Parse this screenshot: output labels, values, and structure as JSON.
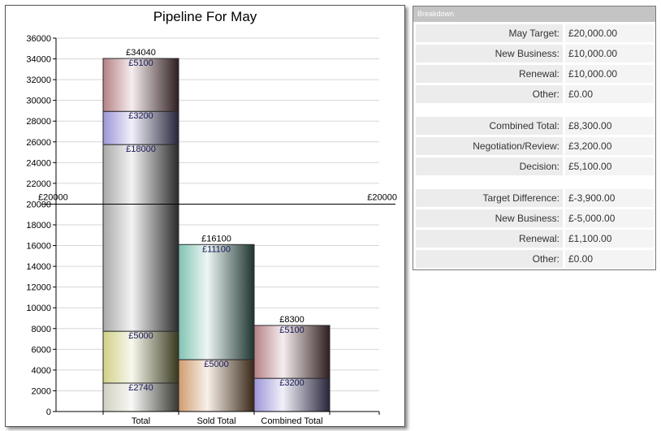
{
  "chart_data": {
    "type": "bar",
    "stacked": true,
    "title": "Pipeline For May",
    "categories": [
      "Total",
      "Sold Total",
      "Combined Total"
    ],
    "ylim": [
      0,
      36000
    ],
    "y_ticks": [
      0,
      2000,
      4000,
      6000,
      8000,
      10000,
      12000,
      14000,
      16000,
      18000,
      20000,
      22000,
      24000,
      26000,
      28000,
      30000,
      32000,
      34000,
      36000
    ],
    "grid": true,
    "bars": [
      {
        "category": "Total",
        "total": 34040,
        "total_label": "£34040",
        "segments": [
          {
            "value": 2740,
            "label": "£2740",
            "color": "#c8c8b4"
          },
          {
            "value": 5000,
            "label": "£5000",
            "color": "#c8c870"
          },
          {
            "value": 18000,
            "label": "£18000",
            "color": "#9a9a9a"
          },
          {
            "value": 3200,
            "label": "£3200",
            "color": "#8a84d0"
          },
          {
            "value": 5100,
            "label": "£5100",
            "color": "#a86a70"
          }
        ]
      },
      {
        "category": "Sold Total",
        "total": 16100,
        "total_label": "£16100",
        "segments": [
          {
            "value": 5000,
            "label": "£5000",
            "color": "#c88a54"
          },
          {
            "value": 11100,
            "label": "£11100",
            "color": "#6ab8a4"
          }
        ]
      },
      {
        "category": "Combined Total",
        "total": 8300,
        "total_label": "£8300",
        "segments": [
          {
            "value": 3200,
            "label": "£3200",
            "color": "#8a84d0"
          },
          {
            "value": 5100,
            "label": "£5100",
            "color": "#a86a70"
          }
        ]
      }
    ],
    "reference_line": {
      "value": 20000,
      "label_left": "£20000",
      "label_right": "£20000"
    }
  },
  "breakdown": {
    "header": "Breakdown",
    "rows": [
      {
        "label": "May Target:",
        "value": "£20,000.00"
      },
      {
        "label": "New Business:",
        "value": "£10,000.00"
      },
      {
        "label": "Renewal:",
        "value": "£10,000.00"
      },
      {
        "label": "Other:",
        "value": "£0.00"
      },
      {
        "label": "Combined Total:",
        "value": "£8,300.00"
      },
      {
        "label": "Negotiation/Review:",
        "value": "£3,200.00"
      },
      {
        "label": "Decision:",
        "value": "£5,100.00"
      },
      {
        "label": "Target Difference:",
        "value": "£-3,900.00"
      },
      {
        "label": "New Business:",
        "value": "£-5,000.00"
      },
      {
        "label": "Renewal:",
        "value": "£1,100.00"
      },
      {
        "label": "Other:",
        "value": "£0.00"
      }
    ]
  }
}
